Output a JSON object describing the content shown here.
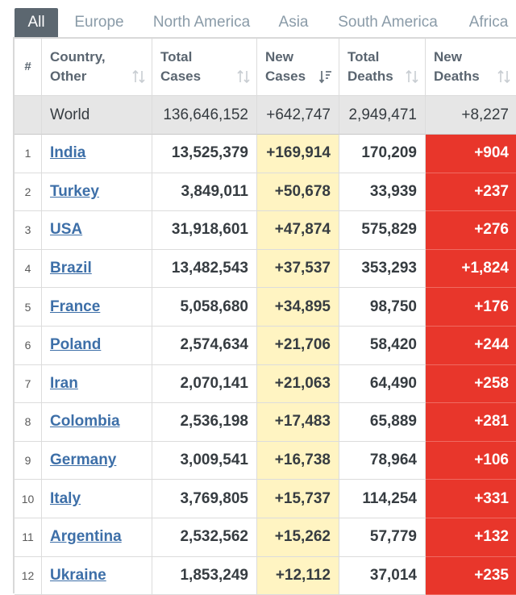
{
  "tabs": [
    "All",
    "Europe",
    "North America",
    "Asia",
    "South America",
    "Africa"
  ],
  "active_tab": "All",
  "header": {
    "rank": "#",
    "country_line1": "Country,",
    "country_line2": "Other",
    "total_cases_line1": "Total",
    "total_cases_line2": "Cases",
    "new_cases_line1": "New",
    "new_cases_line2": "Cases",
    "total_deaths_line1": "Total",
    "total_deaths_line2": "Deaths",
    "new_deaths_line1": "New",
    "new_deaths_line2": "Deaths"
  },
  "world": {
    "name": "World",
    "total_cases": "136,646,152",
    "new_cases": "+642,747",
    "total_deaths": "2,949,471",
    "new_deaths": "+8,227"
  },
  "rows": [
    {
      "rank": "1",
      "country": "India",
      "total_cases": "13,525,379",
      "new_cases": "+169,914",
      "total_deaths": "170,209",
      "new_deaths": "+904"
    },
    {
      "rank": "2",
      "country": "Turkey",
      "total_cases": "3,849,011",
      "new_cases": "+50,678",
      "total_deaths": "33,939",
      "new_deaths": "+237"
    },
    {
      "rank": "3",
      "country": "USA",
      "total_cases": "31,918,601",
      "new_cases": "+47,874",
      "total_deaths": "575,829",
      "new_deaths": "+276"
    },
    {
      "rank": "4",
      "country": "Brazil",
      "total_cases": "13,482,543",
      "new_cases": "+37,537",
      "total_deaths": "353,293",
      "new_deaths": "+1,824"
    },
    {
      "rank": "5",
      "country": "France",
      "total_cases": "5,058,680",
      "new_cases": "+34,895",
      "total_deaths": "98,750",
      "new_deaths": "+176"
    },
    {
      "rank": "6",
      "country": "Poland",
      "total_cases": "2,574,634",
      "new_cases": "+21,706",
      "total_deaths": "58,420",
      "new_deaths": "+244"
    },
    {
      "rank": "7",
      "country": "Iran",
      "total_cases": "2,070,141",
      "new_cases": "+21,063",
      "total_deaths": "64,490",
      "new_deaths": "+258"
    },
    {
      "rank": "8",
      "country": "Colombia",
      "total_cases": "2,536,198",
      "new_cases": "+17,483",
      "total_deaths": "65,889",
      "new_deaths": "+281"
    },
    {
      "rank": "9",
      "country": "Germany",
      "total_cases": "3,009,541",
      "new_cases": "+16,738",
      "total_deaths": "78,964",
      "new_deaths": "+106"
    },
    {
      "rank": "10",
      "country": "Italy",
      "total_cases": "3,769,805",
      "new_cases": "+15,737",
      "total_deaths": "114,254",
      "new_deaths": "+331"
    },
    {
      "rank": "11",
      "country": "Argentina",
      "total_cases": "2,532,562",
      "new_cases": "+15,262",
      "total_deaths": "57,779",
      "new_deaths": "+132"
    },
    {
      "rank": "12",
      "country": "Ukraine",
      "total_cases": "1,853,249",
      "new_cases": "+12,112",
      "total_deaths": "37,014",
      "new_deaths": "+235"
    }
  ],
  "colors": {
    "active_tab_bg": "#5c6770",
    "new_cases_bg": "#fff4c2",
    "new_deaths_bg": "#e8362b",
    "country_link": "#3d6fa8",
    "world_row_bg": "#e6e6e6"
  },
  "icons": {
    "sort": "sort-arrows-icon",
    "sort_active": "sort-descending-icon"
  }
}
